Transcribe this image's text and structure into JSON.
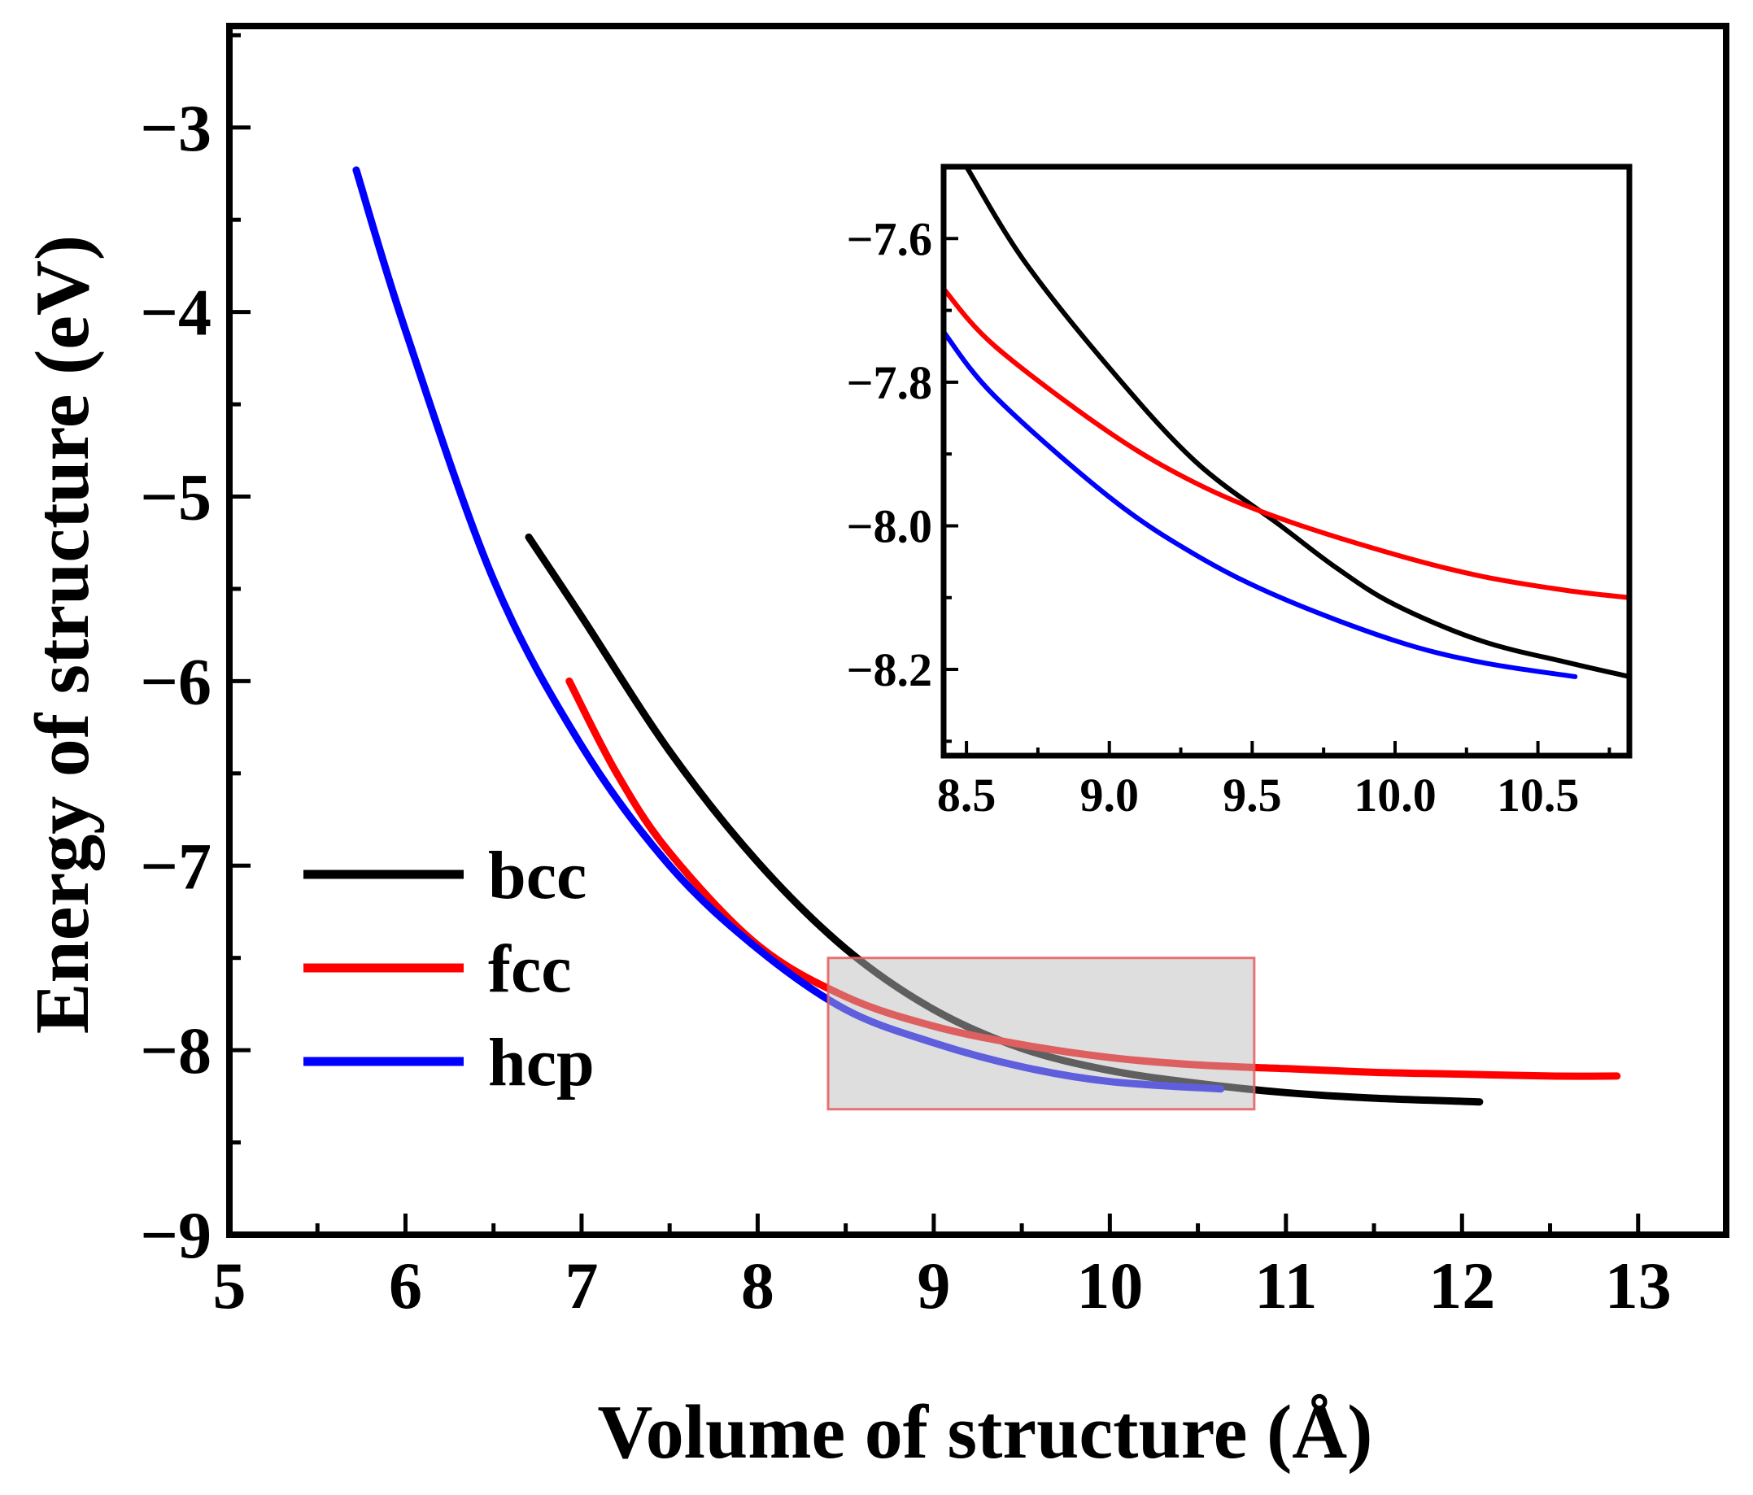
{
  "chart_data": {
    "type": "line",
    "xlabel": "Volume of structure (Å)",
    "ylabel": "Energy of structure (eV)",
    "xlim": [
      5,
      13.5
    ],
    "ylim": [
      -9,
      -2.45
    ],
    "xticks": [
      "5",
      "6",
      "7",
      "8",
      "9",
      "10",
      "11",
      "12",
      "13"
    ],
    "yticks": [
      "−3",
      "−4",
      "−5",
      "−6",
      "−7",
      "−8",
      "−9"
    ],
    "legend_position": "lower-left",
    "series": [
      {
        "name": "bcc",
        "color": "#000000",
        "x": [
          6.7,
          7.0,
          7.5,
          8.0,
          8.5,
          9.0,
          9.5,
          10.0,
          10.5,
          11.0,
          11.5,
          12.1
        ],
        "y": [
          -5.22,
          -5.65,
          -6.38,
          -6.98,
          -7.45,
          -7.78,
          -7.99,
          -8.11,
          -8.18,
          -8.23,
          -8.26,
          -8.28
        ]
      },
      {
        "name": "fcc",
        "color": "#ff0000",
        "x": [
          6.93,
          7.2,
          7.5,
          8.0,
          8.5,
          9.0,
          9.5,
          10.0,
          10.5,
          11.0,
          11.5,
          12.0,
          12.5,
          12.88
        ],
        "y": [
          -6.0,
          -6.5,
          -6.93,
          -7.43,
          -7.71,
          -7.87,
          -7.97,
          -8.04,
          -8.08,
          -8.1,
          -8.12,
          -8.13,
          -8.14,
          -8.14
        ]
      },
      {
        "name": "hcp",
        "color": "#0000ff",
        "x": [
          5.72,
          6.0,
          6.5,
          7.0,
          7.5,
          8.0,
          8.5,
          9.0,
          9.5,
          10.0,
          10.63
        ],
        "y": [
          -3.23,
          -4.1,
          -5.45,
          -6.35,
          -7.0,
          -7.45,
          -7.78,
          -7.96,
          -8.09,
          -8.17,
          -8.21
        ]
      }
    ],
    "highlight_region": {
      "x": [
        8.4,
        10.82
      ],
      "y": [
        -8.32,
        -7.5
      ]
    },
    "inset": {
      "xlim": [
        8.42,
        10.82
      ],
      "ylim": [
        -8.32,
        -7.5
      ],
      "xticks": [
        "8.5",
        "9.0",
        "9.5",
        "10.0",
        "10.5"
      ],
      "yticks": [
        "−7.6",
        "−7.8",
        "−8.0",
        "−8.2"
      ],
      "series": [
        {
          "name": "bcc",
          "color": "#000000",
          "x": [
            8.5,
            8.7,
            9.0,
            9.3,
            9.6,
            9.8,
            10.0,
            10.3,
            10.6,
            10.82
          ],
          "y": [
            -7.5,
            -7.63,
            -7.78,
            -7.91,
            -8.0,
            -8.06,
            -8.11,
            -8.16,
            -8.19,
            -8.21
          ]
        },
        {
          "name": "fcc",
          "color": "#ff0000",
          "x": [
            8.42,
            8.6,
            9.0,
            9.3,
            9.6,
            10.0,
            10.3,
            10.6,
            10.82
          ],
          "y": [
            -7.67,
            -7.75,
            -7.87,
            -7.94,
            -7.99,
            -8.04,
            -8.07,
            -8.09,
            -8.1
          ]
        },
        {
          "name": "hcp",
          "color": "#0000ff",
          "x": [
            8.42,
            8.6,
            9.0,
            9.3,
            9.6,
            10.0,
            10.3,
            10.63
          ],
          "y": [
            -7.73,
            -7.82,
            -7.96,
            -8.04,
            -8.1,
            -8.16,
            -8.19,
            -8.21
          ]
        }
      ]
    }
  }
}
